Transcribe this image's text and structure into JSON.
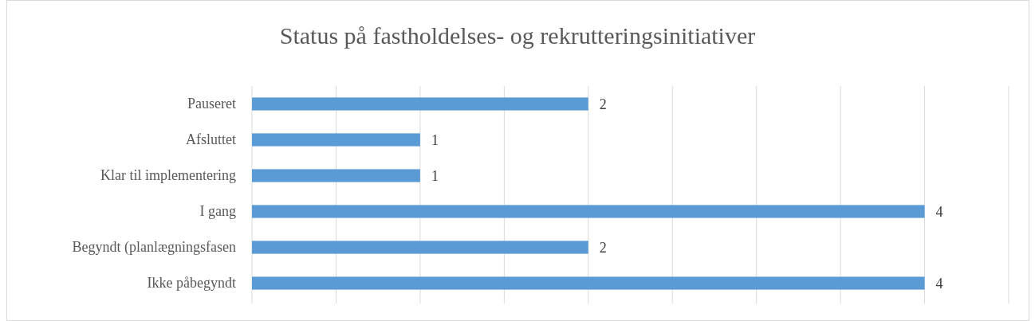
{
  "chart_data": {
    "type": "bar",
    "orientation": "horizontal",
    "title": "Status på fastholdelses- og rekrutteringsinitiativer",
    "categories": [
      "Pauseret",
      "Afsluttet",
      "Klar til implementering",
      "I gang",
      "Begyndt (planlægningsfasen",
      "Ikke påbegyndt"
    ],
    "values": [
      2,
      1,
      1,
      4,
      2,
      4
    ],
    "color": "#5b9bd5",
    "xlim": [
      0,
      4.5
    ],
    "xticks": [
      {
        "value": 0,
        "label": null
      },
      {
        "value": 0.5,
        "label": null
      },
      {
        "value": 1,
        "label": null
      },
      {
        "value": 1.5,
        "label": null
      },
      {
        "value": 2,
        "label": null
      },
      {
        "value": 2.5,
        "label": null
      },
      {
        "value": 3,
        "label": null
      },
      {
        "value": 3.5,
        "label": null
      },
      {
        "value": 4,
        "label": null
      },
      {
        "value": 4.5,
        "label": null
      }
    ],
    "tick_labels": "y",
    "grid": "x",
    "data_labels": true
  }
}
